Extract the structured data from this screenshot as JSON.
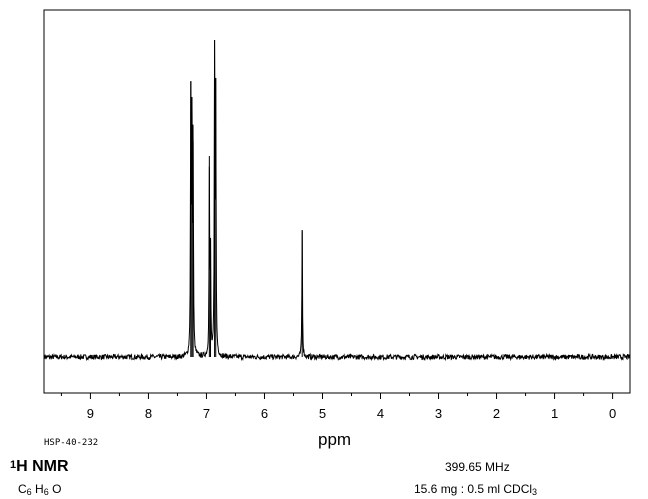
{
  "chart_data": {
    "type": "line",
    "title": "",
    "xlabel": "ppm",
    "ylabel": "",
    "xlim": [
      9.8,
      -0.3
    ],
    "x_reversed": true,
    "ylim": [
      0,
      1.0
    ],
    "grid": false,
    "x_ticks": [
      9,
      8,
      7,
      6,
      5,
      4,
      3,
      2,
      1,
      0
    ],
    "x_tick_labels": [
      "9",
      "8",
      "7",
      "6",
      "5",
      "4",
      "3",
      "2",
      "1",
      "0"
    ],
    "baseline": 0.0,
    "noise_amplitude": 0.008,
    "series": [
      {
        "peaks": [
          {
            "ppm": 7.27,
            "height": 0.87
          },
          {
            "ppm": 7.25,
            "height": 0.82
          },
          {
            "ppm": 7.23,
            "height": 0.68
          },
          {
            "ppm": 6.95,
            "height": 0.6
          },
          {
            "ppm": 6.93,
            "height": 0.33
          },
          {
            "ppm": 6.86,
            "height": 1.0
          },
          {
            "ppm": 6.84,
            "height": 0.88
          },
          {
            "ppm": 5.35,
            "height": 0.4
          }
        ]
      }
    ]
  },
  "sample_id": "HSP-40-232",
  "nmr": {
    "superscript": "1",
    "label": "H NMR"
  },
  "formula": {
    "c": "C",
    "c_count": "6",
    "h": "H",
    "h_count": "6",
    "o": "O"
  },
  "frequency": "399.65 MHz",
  "concentration": {
    "text": "15.6 mg : 0.5 ml CDCl",
    "sub": "3"
  }
}
